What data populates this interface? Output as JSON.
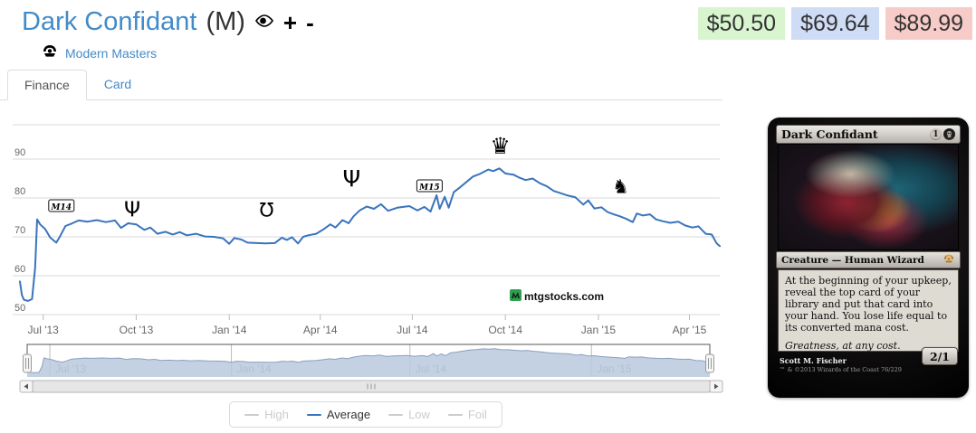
{
  "header": {
    "title": "Dark Confidant",
    "rarity_suffix": "(M)",
    "set_link": "Modern Masters",
    "actions": {
      "add": "+",
      "subtract": "-"
    },
    "prices": [
      {
        "name": "low",
        "label": "$50.50",
        "bg": "#d8f5cf"
      },
      {
        "name": "average",
        "label": "$69.64",
        "bg": "#cfdcf5"
      },
      {
        "name": "high",
        "label": "$89.99",
        "bg": "#f7cbc8"
      }
    ]
  },
  "tabs": [
    {
      "label": "Finance",
      "active": true
    },
    {
      "label": "Card",
      "active": false
    }
  ],
  "chart_data": {
    "type": "line",
    "title": "",
    "xlabel": "",
    "ylabel": "",
    "grid": true,
    "legend_position": "bottom",
    "watermark": "mtgstocks.com",
    "y_ticks": [
      50,
      60,
      70,
      80,
      90
    ],
    "y_range": [
      50,
      98.8
    ],
    "x_range": [
      "2013-06-08",
      "2015-05-01"
    ],
    "x_ticks": [
      {
        "label": "Jul '13",
        "date": "2013-07-01"
      },
      {
        "label": "Oct '13",
        "date": "2013-10-01"
      },
      {
        "label": "Jan '14",
        "date": "2014-01-01"
      },
      {
        "label": "Apr '14",
        "date": "2014-04-01"
      },
      {
        "label": "Jul '14",
        "date": "2014-07-01"
      },
      {
        "label": "Oct '14",
        "date": "2014-10-01"
      },
      {
        "label": "Jan '15",
        "date": "2015-01-01"
      },
      {
        "label": "Apr '15",
        "date": "2015-04-01"
      }
    ],
    "legend": [
      {
        "label": "High",
        "enabled": false,
        "color": "#cccccc"
      },
      {
        "label": "Average",
        "enabled": true,
        "color": "#3a74bd"
      },
      {
        "label": "Low",
        "enabled": false,
        "color": "#cccccc"
      },
      {
        "label": "Foil",
        "enabled": false,
        "color": "#cccccc"
      }
    ],
    "series": [
      {
        "name": "Average",
        "color": "#3a74bd",
        "points": [
          [
            "2013-06-08",
            58.5
          ],
          [
            "2013-06-10",
            55.0
          ],
          [
            "2013-06-12",
            53.8
          ],
          [
            "2013-06-16",
            53.5
          ],
          [
            "2013-06-20",
            54.0
          ],
          [
            "2013-06-23",
            62.0
          ],
          [
            "2013-06-25",
            74.5
          ],
          [
            "2013-06-28",
            73.2
          ],
          [
            "2013-07-03",
            72.0
          ],
          [
            "2013-07-08",
            69.8
          ],
          [
            "2013-07-14",
            68.5
          ],
          [
            "2013-07-18",
            70.3
          ],
          [
            "2013-07-23",
            72.8
          ],
          [
            "2013-07-29",
            73.4
          ],
          [
            "2013-08-05",
            74.2
          ],
          [
            "2013-08-14",
            73.9
          ],
          [
            "2013-08-23",
            74.3
          ],
          [
            "2013-09-01",
            73.8
          ],
          [
            "2013-09-10",
            74.2
          ],
          [
            "2013-09-16",
            72.3
          ],
          [
            "2013-09-23",
            73.5
          ],
          [
            "2013-10-01",
            73.2
          ],
          [
            "2013-10-09",
            71.8
          ],
          [
            "2013-10-15",
            72.4
          ],
          [
            "2013-10-22",
            70.8
          ],
          [
            "2013-10-30",
            71.3
          ],
          [
            "2013-11-06",
            70.6
          ],
          [
            "2013-11-13",
            71.2
          ],
          [
            "2013-11-20",
            70.4
          ],
          [
            "2013-11-29",
            70.8
          ],
          [
            "2013-12-08",
            70.1
          ],
          [
            "2013-12-17",
            70.0
          ],
          [
            "2013-12-26",
            69.6
          ],
          [
            "2014-01-01",
            68.2
          ],
          [
            "2014-01-06",
            69.7
          ],
          [
            "2014-01-13",
            69.3
          ],
          [
            "2014-01-19",
            68.5
          ],
          [
            "2014-01-28",
            68.4
          ],
          [
            "2014-02-06",
            68.3
          ],
          [
            "2014-02-15",
            68.4
          ],
          [
            "2014-02-22",
            69.8
          ],
          [
            "2014-02-27",
            69.2
          ],
          [
            "2014-03-04",
            69.9
          ],
          [
            "2014-03-10",
            68.3
          ],
          [
            "2014-03-15",
            70.0
          ],
          [
            "2014-03-20",
            70.4
          ],
          [
            "2014-03-28",
            70.8
          ],
          [
            "2014-04-04",
            71.9
          ],
          [
            "2014-04-11",
            73.2
          ],
          [
            "2014-04-16",
            72.4
          ],
          [
            "2014-04-23",
            74.3
          ],
          [
            "2014-04-29",
            73.5
          ],
          [
            "2014-05-04",
            75.3
          ],
          [
            "2014-05-10",
            76.8
          ],
          [
            "2014-05-17",
            77.8
          ],
          [
            "2014-05-24",
            77.2
          ],
          [
            "2014-05-31",
            78.4
          ],
          [
            "2014-06-07",
            76.7
          ],
          [
            "2014-06-16",
            77.5
          ],
          [
            "2014-06-28",
            77.9
          ],
          [
            "2014-07-06",
            76.8
          ],
          [
            "2014-07-13",
            77.7
          ],
          [
            "2014-07-19",
            76.5
          ],
          [
            "2014-07-25",
            80.7
          ],
          [
            "2014-07-28",
            77.2
          ],
          [
            "2014-08-02",
            80.3
          ],
          [
            "2014-08-06",
            77.5
          ],
          [
            "2014-08-11",
            81.5
          ],
          [
            "2014-08-17",
            82.7
          ],
          [
            "2014-08-23",
            84.0
          ],
          [
            "2014-08-30",
            85.5
          ],
          [
            "2014-09-06",
            86.2
          ],
          [
            "2014-09-14",
            87.3
          ],
          [
            "2014-09-19",
            86.9
          ],
          [
            "2014-09-25",
            87.6
          ],
          [
            "2014-10-01",
            86.3
          ],
          [
            "2014-10-09",
            86.0
          ],
          [
            "2014-10-15",
            85.2
          ],
          [
            "2014-10-21",
            84.6
          ],
          [
            "2014-10-28",
            85.0
          ],
          [
            "2014-11-04",
            83.8
          ],
          [
            "2014-11-11",
            83.0
          ],
          [
            "2014-11-18",
            81.8
          ],
          [
            "2014-11-25",
            81.2
          ],
          [
            "2014-12-02",
            80.6
          ],
          [
            "2014-12-09",
            80.2
          ],
          [
            "2014-12-17",
            78.3
          ],
          [
            "2014-12-22",
            79.4
          ],
          [
            "2014-12-28",
            77.3
          ],
          [
            "2015-01-04",
            77.6
          ],
          [
            "2015-01-10",
            76.4
          ],
          [
            "2015-01-16",
            75.8
          ],
          [
            "2015-01-22",
            75.3
          ],
          [
            "2015-01-28",
            74.7
          ],
          [
            "2015-02-04",
            73.8
          ],
          [
            "2015-02-08",
            76.0
          ],
          [
            "2015-02-14",
            75.5
          ],
          [
            "2015-02-21",
            75.8
          ],
          [
            "2015-02-27",
            74.5
          ],
          [
            "2015-03-06",
            74.0
          ],
          [
            "2015-03-13",
            73.6
          ],
          [
            "2015-03-21",
            73.9
          ],
          [
            "2015-03-28",
            72.9
          ],
          [
            "2015-04-04",
            72.4
          ],
          [
            "2015-04-10",
            72.7
          ],
          [
            "2015-04-17",
            70.8
          ],
          [
            "2015-04-23",
            70.6
          ],
          [
            "2015-04-28",
            68.3
          ],
          [
            "2015-05-01",
            67.6
          ]
        ]
      }
    ],
    "annotations": [
      {
        "id": "set-m14",
        "kind": "box",
        "label": "M14",
        "date": "2013-07-19",
        "cy": 98
      },
      {
        "id": "set-theros",
        "kind": "glyph",
        "char": "Ψ",
        "date": "2013-09-27",
        "cy": 101,
        "size": 23
      },
      {
        "id": "set-born-of-the-gods",
        "kind": "glyph",
        "char": "Ʊ",
        "date": "2014-02-07",
        "cy": 102,
        "size": 21
      },
      {
        "id": "set-journey-into-nyx",
        "kind": "glyph",
        "char": "Ψ",
        "date": "2014-05-02",
        "cy": 67,
        "size": 25
      },
      {
        "id": "set-m15",
        "kind": "box",
        "label": "M15",
        "date": "2014-07-18",
        "cy": 76
      },
      {
        "id": "set-khans-of-tarkir",
        "kind": "glyph",
        "char": "♛",
        "date": "2014-09-26",
        "cy": 31,
        "size": 25
      },
      {
        "id": "set-fate-reforged",
        "kind": "glyph",
        "char": "♞",
        "date": "2015-01-23",
        "cy": 76,
        "size": 21
      }
    ],
    "navigator": {
      "fill": "#b9c9de",
      "line": "#8aa0bd",
      "labels": [
        {
          "label": "Jul '13",
          "date": "2013-07-01"
        },
        {
          "label": "Jan '14",
          "date": "2014-01-01"
        },
        {
          "label": "Jul '14",
          "date": "2014-07-01"
        },
        {
          "label": "Jan '15",
          "date": "2015-01-01"
        }
      ]
    }
  },
  "card": {
    "title": "Dark Confidant",
    "mana_generic": "1",
    "type_line": "Creature — Human Wizard",
    "rules_text": "At the beginning of your upkeep, reveal the top card of your library and put that card into your hand. You lose life equal to its converted mana cost.",
    "flavor_text": "Greatness, at any cost.",
    "power_toughness": "2/1",
    "artist": "Scott M. Fischer",
    "copyright": "™ & ©2013 Wizards of the Coast 76/229"
  }
}
